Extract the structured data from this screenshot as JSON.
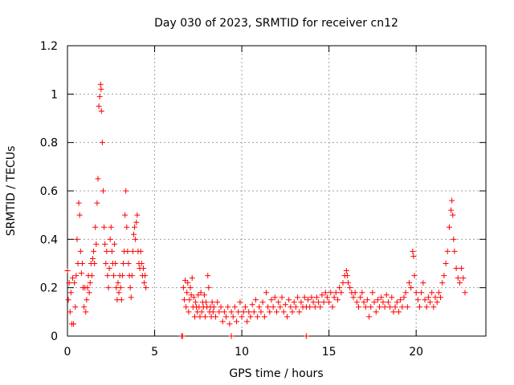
{
  "chart_data": {
    "type": "scatter",
    "title": "Day 030 of 2023, SRMTID for receiver cn12",
    "xlabel": "GPS time / hours",
    "ylabel": "SRMTID / TECUs",
    "xlim": [
      0,
      24
    ],
    "ylim": [
      0,
      1.2
    ],
    "xticks": [
      "0",
      "5",
      "10",
      "15",
      "20"
    ],
    "xtick_values": [
      0,
      5,
      10,
      15,
      20
    ],
    "yticks": [
      "0",
      "0.2",
      "0.4",
      "0.6",
      "0.8",
      "1",
      "1.2"
    ],
    "ytick_values": [
      0,
      0.2,
      0.4,
      0.6,
      0.8,
      1.0,
      1.2
    ],
    "grid": true,
    "marker": "+",
    "color": "#ff0000",
    "series": [
      {
        "name": "SRMTID",
        "points": [
          [
            0.0,
            0.27
          ],
          [
            0.05,
            0.15
          ],
          [
            0.1,
            0.22
          ],
          [
            0.15,
            0.1
          ],
          [
            0.2,
            0.18
          ],
          [
            0.25,
            0.05
          ],
          [
            0.3,
            0.24
          ],
          [
            0.35,
            0.05
          ],
          [
            0.4,
            0.22
          ],
          [
            0.45,
            0.12
          ],
          [
            0.5,
            0.25
          ],
          [
            0.55,
            0.4
          ],
          [
            0.6,
            0.3
          ],
          [
            0.65,
            0.55
          ],
          [
            0.7,
            0.5
          ],
          [
            0.75,
            0.35
          ],
          [
            0.8,
            0.26
          ],
          [
            0.85,
            0.3
          ],
          [
            0.9,
            0.2
          ],
          [
            0.95,
            0.12
          ],
          [
            1.0,
            0.2
          ],
          [
            1.05,
            0.1
          ],
          [
            1.1,
            0.15
          ],
          [
            1.15,
            0.2
          ],
          [
            1.2,
            0.25
          ],
          [
            1.25,
            0.18
          ],
          [
            1.3,
            0.22
          ],
          [
            1.35,
            0.3
          ],
          [
            1.4,
            0.25
          ],
          [
            1.45,
            0.32
          ],
          [
            1.5,
            0.35
          ],
          [
            1.55,
            0.3
          ],
          [
            1.6,
            0.45
          ],
          [
            1.65,
            0.38
          ],
          [
            1.7,
            0.55
          ],
          [
            1.75,
            0.65
          ],
          [
            1.8,
            0.95
          ],
          [
            1.85,
            0.99
          ],
          [
            1.9,
            1.04
          ],
          [
            1.93,
            1.02
          ],
          [
            1.95,
            0.93
          ],
          [
            2.0,
            0.8
          ],
          [
            2.05,
            0.6
          ],
          [
            2.1,
            0.45
          ],
          [
            2.15,
            0.38
          ],
          [
            2.2,
            0.3
          ],
          [
            2.25,
            0.35
          ],
          [
            2.3,
            0.25
          ],
          [
            2.35,
            0.2
          ],
          [
            2.4,
            0.28
          ],
          [
            2.45,
            0.4
          ],
          [
            2.5,
            0.45
          ],
          [
            2.55,
            0.35
          ],
          [
            2.6,
            0.3
          ],
          [
            2.65,
            0.25
          ],
          [
            2.7,
            0.38
          ],
          [
            2.75,
            0.3
          ],
          [
            2.8,
            0.2
          ],
          [
            2.85,
            0.15
          ],
          [
            2.9,
            0.22
          ],
          [
            2.95,
            0.18
          ],
          [
            3.0,
            0.25
          ],
          [
            3.05,
            0.2
          ],
          [
            3.1,
            0.15
          ],
          [
            3.15,
            0.25
          ],
          [
            3.2,
            0.3
          ],
          [
            3.25,
            0.35
          ],
          [
            3.3,
            0.5
          ],
          [
            3.35,
            0.6
          ],
          [
            3.4,
            0.45
          ],
          [
            3.45,
            0.35
          ],
          [
            3.5,
            0.3
          ],
          [
            3.55,
            0.25
          ],
          [
            3.6,
            0.2
          ],
          [
            3.65,
            0.16
          ],
          [
            3.7,
            0.25
          ],
          [
            3.75,
            0.35
          ],
          [
            3.8,
            0.42
          ],
          [
            3.85,
            0.45
          ],
          [
            3.9,
            0.4
          ],
          [
            3.95,
            0.47
          ],
          [
            4.0,
            0.5
          ],
          [
            4.05,
            0.35
          ],
          [
            4.1,
            0.3
          ],
          [
            4.15,
            0.28
          ],
          [
            4.2,
            0.35
          ],
          [
            4.25,
            0.3
          ],
          [
            4.3,
            0.25
          ],
          [
            4.35,
            0.28
          ],
          [
            4.4,
            0.22
          ],
          [
            4.45,
            0.25
          ],
          [
            4.5,
            0.2
          ],
          [
            6.55,
            0.0
          ],
          [
            6.6,
            0.0
          ],
          [
            6.65,
            0.2
          ],
          [
            6.7,
            0.15
          ],
          [
            6.75,
            0.23
          ],
          [
            6.8,
            0.12
          ],
          [
            6.85,
            0.18
          ],
          [
            6.9,
            0.22
          ],
          [
            6.95,
            0.1
          ],
          [
            7.0,
            0.15
          ],
          [
            7.05,
            0.2
          ],
          [
            7.1,
            0.17
          ],
          [
            7.15,
            0.24
          ],
          [
            7.2,
            0.12
          ],
          [
            7.25,
            0.16
          ],
          [
            7.3,
            0.08
          ],
          [
            7.35,
            0.14
          ],
          [
            7.4,
            0.12
          ],
          [
            7.45,
            0.1
          ],
          [
            7.5,
            0.17
          ],
          [
            7.55,
            0.12
          ],
          [
            7.6,
            0.08
          ],
          [
            7.65,
            0.18
          ],
          [
            7.7,
            0.1
          ],
          [
            7.75,
            0.14
          ],
          [
            7.8,
            0.12
          ],
          [
            7.85,
            0.17
          ],
          [
            7.9,
            0.08
          ],
          [
            7.95,
            0.14
          ],
          [
            8.0,
            0.12
          ],
          [
            8.05,
            0.25
          ],
          [
            8.1,
            0.2
          ],
          [
            8.15,
            0.1
          ],
          [
            8.2,
            0.12
          ],
          [
            8.25,
            0.08
          ],
          [
            8.3,
            0.14
          ],
          [
            8.35,
            0.1
          ],
          [
            8.4,
            0.12
          ],
          [
            8.5,
            0.08
          ],
          [
            8.6,
            0.14
          ],
          [
            8.7,
            0.1
          ],
          [
            8.8,
            0.12
          ],
          [
            8.9,
            0.06
          ],
          [
            9.0,
            0.1
          ],
          [
            9.1,
            0.08
          ],
          [
            9.2,
            0.12
          ],
          [
            9.3,
            0.05
          ],
          [
            9.4,
            0.0
          ],
          [
            9.4,
            0.1
          ],
          [
            9.5,
            0.08
          ],
          [
            9.6,
            0.12
          ],
          [
            9.7,
            0.06
          ],
          [
            9.8,
            0.1
          ],
          [
            9.9,
            0.14
          ],
          [
            10.0,
            0.08
          ],
          [
            10.1,
            0.1
          ],
          [
            10.2,
            0.12
          ],
          [
            10.3,
            0.06
          ],
          [
            10.4,
            0.1
          ],
          [
            10.5,
            0.08
          ],
          [
            10.6,
            0.13
          ],
          [
            10.7,
            0.1
          ],
          [
            10.8,
            0.15
          ],
          [
            10.9,
            0.08
          ],
          [
            11.0,
            0.12
          ],
          [
            11.1,
            0.1
          ],
          [
            11.2,
            0.14
          ],
          [
            11.3,
            0.08
          ],
          [
            11.4,
            0.18
          ],
          [
            11.5,
            0.12
          ],
          [
            11.6,
            0.1
          ],
          [
            11.7,
            0.15
          ],
          [
            11.8,
            0.12
          ],
          [
            11.9,
            0.16
          ],
          [
            12.0,
            0.1
          ],
          [
            12.1,
            0.14
          ],
          [
            12.2,
            0.12
          ],
          [
            12.3,
            0.16
          ],
          [
            12.4,
            0.1
          ],
          [
            12.5,
            0.13
          ],
          [
            12.6,
            0.08
          ],
          [
            12.7,
            0.15
          ],
          [
            12.8,
            0.12
          ],
          [
            12.9,
            0.1
          ],
          [
            13.0,
            0.14
          ],
          [
            13.1,
            0.12
          ],
          [
            13.2,
            0.16
          ],
          [
            13.3,
            0.1
          ],
          [
            13.4,
            0.14
          ],
          [
            13.5,
            0.12
          ],
          [
            13.6,
            0.16
          ],
          [
            13.7,
            0.0
          ],
          [
            13.7,
            0.12
          ],
          [
            13.8,
            0.15
          ],
          [
            13.9,
            0.12
          ],
          [
            14.0,
            0.16
          ],
          [
            14.1,
            0.14
          ],
          [
            14.2,
            0.12
          ],
          [
            14.3,
            0.16
          ],
          [
            14.4,
            0.14
          ],
          [
            14.5,
            0.12
          ],
          [
            14.6,
            0.17
          ],
          [
            14.7,
            0.14
          ],
          [
            14.8,
            0.18
          ],
          [
            14.9,
            0.16
          ],
          [
            15.0,
            0.14
          ],
          [
            15.1,
            0.18
          ],
          [
            15.2,
            0.12
          ],
          [
            15.3,
            0.16
          ],
          [
            15.4,
            0.18
          ],
          [
            15.5,
            0.15
          ],
          [
            15.6,
            0.2
          ],
          [
            15.7,
            0.18
          ],
          [
            15.8,
            0.22
          ],
          [
            15.9,
            0.25
          ],
          [
            16.0,
            0.27
          ],
          [
            16.05,
            0.25
          ],
          [
            16.1,
            0.22
          ],
          [
            16.2,
            0.2
          ],
          [
            16.3,
            0.18
          ],
          [
            16.4,
            0.16
          ],
          [
            16.5,
            0.18
          ],
          [
            16.6,
            0.14
          ],
          [
            16.7,
            0.12
          ],
          [
            16.8,
            0.16
          ],
          [
            16.9,
            0.18
          ],
          [
            17.0,
            0.14
          ],
          [
            17.1,
            0.12
          ],
          [
            17.2,
            0.15
          ],
          [
            17.3,
            0.08
          ],
          [
            17.4,
            0.12
          ],
          [
            17.5,
            0.18
          ],
          [
            17.6,
            0.14
          ],
          [
            17.7,
            0.1
          ],
          [
            17.8,
            0.15
          ],
          [
            17.9,
            0.12
          ],
          [
            18.0,
            0.16
          ],
          [
            18.1,
            0.14
          ],
          [
            18.2,
            0.12
          ],
          [
            18.3,
            0.17
          ],
          [
            18.4,
            0.14
          ],
          [
            18.5,
            0.12
          ],
          [
            18.6,
            0.16
          ],
          [
            18.7,
            0.1
          ],
          [
            18.8,
            0.12
          ],
          [
            18.9,
            0.14
          ],
          [
            19.0,
            0.1
          ],
          [
            19.1,
            0.15
          ],
          [
            19.2,
            0.12
          ],
          [
            19.3,
            0.16
          ],
          [
            19.4,
            0.18
          ],
          [
            19.5,
            0.12
          ],
          [
            19.6,
            0.22
          ],
          [
            19.7,
            0.2
          ],
          [
            19.8,
            0.35
          ],
          [
            19.85,
            0.33
          ],
          [
            19.9,
            0.25
          ],
          [
            20.0,
            0.18
          ],
          [
            20.1,
            0.15
          ],
          [
            20.2,
            0.12
          ],
          [
            20.3,
            0.18
          ],
          [
            20.4,
            0.22
          ],
          [
            20.5,
            0.15
          ],
          [
            20.6,
            0.12
          ],
          [
            20.7,
            0.16
          ],
          [
            20.8,
            0.14
          ],
          [
            20.9,
            0.18
          ],
          [
            21.0,
            0.12
          ],
          [
            21.1,
            0.16
          ],
          [
            21.2,
            0.14
          ],
          [
            21.3,
            0.18
          ],
          [
            21.4,
            0.16
          ],
          [
            21.5,
            0.22
          ],
          [
            21.6,
            0.25
          ],
          [
            21.7,
            0.3
          ],
          [
            21.8,
            0.35
          ],
          [
            21.9,
            0.45
          ],
          [
            22.0,
            0.52
          ],
          [
            22.05,
            0.56
          ],
          [
            22.1,
            0.5
          ],
          [
            22.15,
            0.4
          ],
          [
            22.2,
            0.35
          ],
          [
            22.3,
            0.28
          ],
          [
            22.4,
            0.24
          ],
          [
            22.5,
            0.22
          ],
          [
            22.6,
            0.28
          ],
          [
            22.7,
            0.24
          ],
          [
            22.8,
            0.18
          ]
        ]
      }
    ]
  }
}
